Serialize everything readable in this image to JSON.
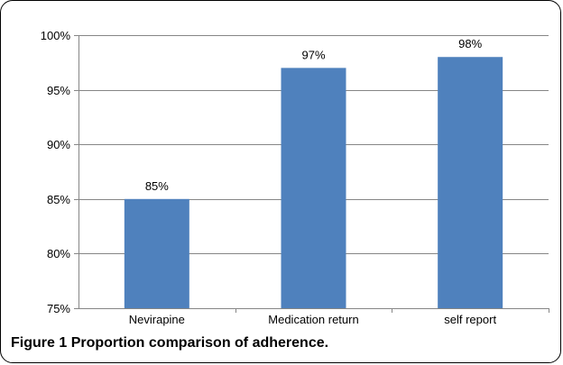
{
  "caption": {
    "label": "Figure 1",
    "text": "Proportion comparison of adherence."
  },
  "colors": {
    "bar": "#4f81bd",
    "grid": "#868686",
    "axis": "#868686"
  },
  "chart_data": {
    "type": "bar",
    "categories": [
      "Nevirapine",
      "Medication return",
      "self report"
    ],
    "values": [
      85,
      97,
      98
    ],
    "data_labels": [
      "85%",
      "97%",
      "98%"
    ],
    "ylim": [
      75,
      100
    ],
    "yticks": [
      75,
      80,
      85,
      90,
      95,
      100
    ],
    "ytick_labels": [
      "75%",
      "80%",
      "85%",
      "90%",
      "95%",
      "100%"
    ],
    "grid": true,
    "legend": "none",
    "title": "",
    "xlabel": "",
    "ylabel": ""
  }
}
